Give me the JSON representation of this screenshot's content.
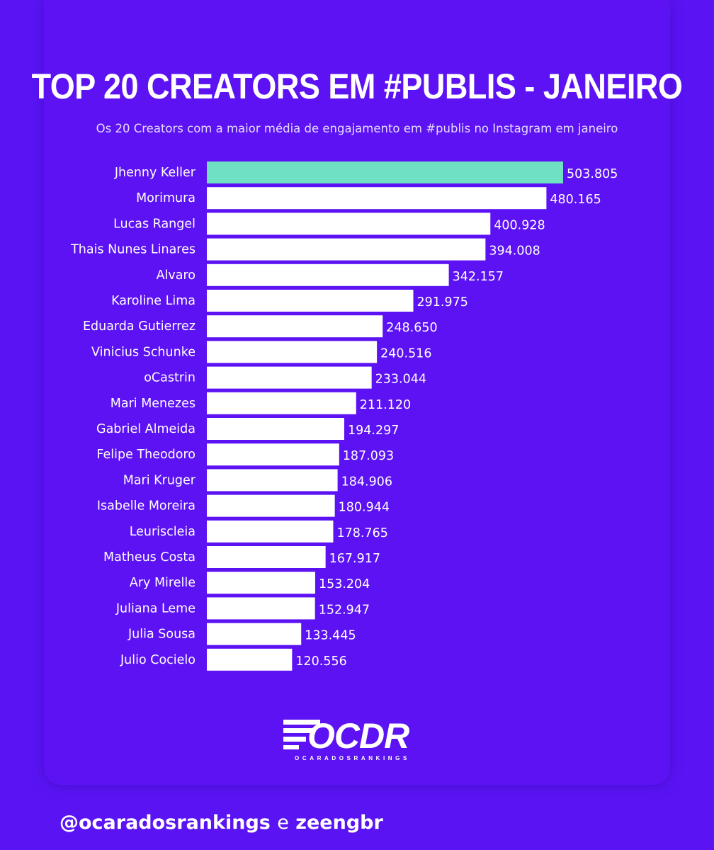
{
  "chart_data": {
    "type": "bar",
    "orientation": "horizontal",
    "title": "TOP 20 CREATORS EM #PUBLIS - JANEIRO",
    "subtitle": "Os 20 Creators com a maior média de engajamento em #publis no Instagram em janeiro",
    "categories": [
      "Jhenny Keller",
      "Morimura",
      "Lucas Rangel",
      "Thais Nunes Linares",
      "Alvaro",
      "Karoline Lima",
      "Eduarda Gutierrez",
      "Vinicius Schunke",
      "oCastrin",
      "Mari Menezes",
      "Gabriel Almeida",
      "Felipe Theodoro",
      "Mari Kruger",
      "Isabelle Moreira",
      "Leuriscleia",
      "Matheus Costa",
      "Ary Mirelle",
      "Juliana Leme",
      "Julia Sousa",
      "Julio Cocielo"
    ],
    "values": [
      503805,
      480165,
      400928,
      394008,
      342157,
      291975,
      248650,
      240516,
      233044,
      211120,
      194297,
      187093,
      184906,
      180944,
      178765,
      167917,
      153204,
      152947,
      133445,
      120556
    ],
    "value_labels": [
      "503.805",
      "480.165",
      "400.928",
      "394.008",
      "342.157",
      "291.975",
      "248.650",
      "240.516",
      "233.044",
      "211.120",
      "194.297",
      "187.093",
      "184.906",
      "180.944",
      "178.765",
      "167.917",
      "153.204",
      "152.947",
      "133.445",
      "120.556"
    ],
    "highlight_index": 0,
    "colors": {
      "bar": "#ffffff",
      "highlight": "#6fe0c4",
      "background": "#5c12f3",
      "text": "#ffffff"
    },
    "grid": false,
    "legend": "none"
  },
  "logo": {
    "name": "OCDR",
    "tagline": "OCARADOSRANKINGS",
    "icon": "speed-lines-icon"
  },
  "footer": {
    "handle1": "@ocaradosrankings",
    "conjunction": "e",
    "handle2": "zeengbr"
  }
}
